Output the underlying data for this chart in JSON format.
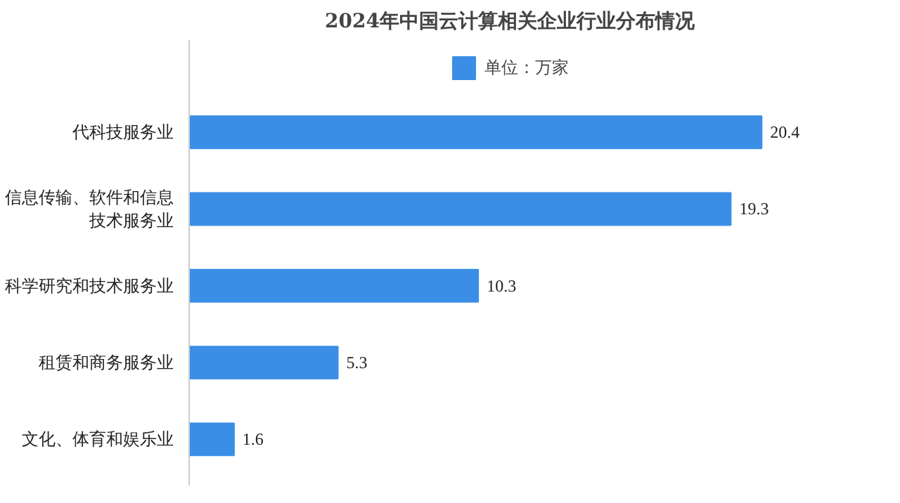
{
  "chart_data": {
    "type": "bar",
    "orientation": "horizontal",
    "title": "2024年中国云计算相关企业行业分布情况",
    "categories": [
      "代科技服务业",
      "信息传输、软件和信息技术服务业",
      "科学研究和技术服务业",
      "租赁和商务服务业",
      "文化、体育和娱乐业"
    ],
    "series": [
      {
        "name": "单位：万家",
        "color": "#3a8ee6",
        "values": [
          20.4,
          19.3,
          10.3,
          5.3,
          1.6
        ]
      }
    ],
    "data_labels": true,
    "legend": "top",
    "grid": false
  }
}
